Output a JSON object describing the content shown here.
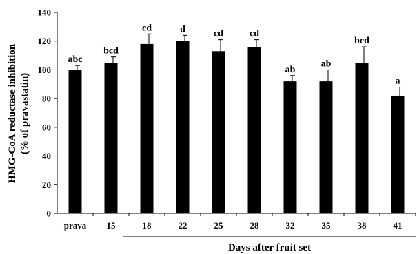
{
  "chart_data": {
    "type": "bar",
    "title": "",
    "ylabel_line1": "HMG-CoA reductase inhibition",
    "ylabel_line2": "(% of pravastatin)",
    "xlabel": "Days after fruit set",
    "ylim": [
      0,
      140
    ],
    "ytick_step": 20,
    "yticks": [
      "0",
      "20",
      "40",
      "60",
      "80",
      "100",
      "120",
      "140"
    ],
    "categories": [
      "prava",
      "15",
      "18",
      "22",
      "25",
      "28",
      "32",
      "35",
      "38",
      "41"
    ],
    "values": [
      100,
      105,
      118,
      120,
      113,
      116,
      92,
      92,
      105,
      82
    ],
    "errors": [
      3,
      4,
      7,
      4,
      8,
      5,
      4,
      8,
      11,
      6
    ],
    "significance": [
      "abc",
      "bcd",
      "cd",
      "d",
      "cd",
      "cd",
      "ab",
      "ab",
      "bcd",
      "a"
    ],
    "bar_color": "#000000",
    "grid": false,
    "legend": "none"
  }
}
